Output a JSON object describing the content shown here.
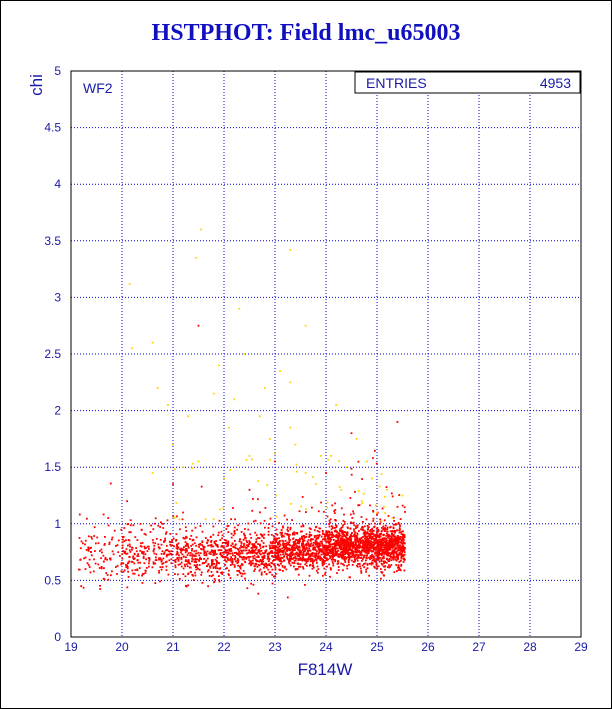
{
  "title": "HSTPHOT: Field lmc_u65003",
  "colors": {
    "title": "#1010c0",
    "axis_text": "#1a1aa8",
    "grid": "#0000cc",
    "points_primary": "#ff0000",
    "points_secondary": "#ffd400",
    "frame": "#000000"
  },
  "panel": {
    "label": "WF2",
    "stats_label": "ENTRIES",
    "stats_value": "4953"
  },
  "chart_data": {
    "type": "scatter",
    "title": "HSTPHOT: Field lmc_u65003",
    "xlabel": "F814W",
    "ylabel": "chi",
    "xlim": [
      19,
      29
    ],
    "ylim": [
      0,
      5
    ],
    "xticks": [
      19,
      20,
      21,
      22,
      23,
      24,
      25,
      26,
      27,
      28,
      29
    ],
    "yticks": [
      "0",
      "0.5",
      "1",
      "1.5",
      "2",
      "2.5",
      "3",
      "3.5",
      "4",
      "4.5",
      "5"
    ],
    "grid": true,
    "entries": 4953,
    "series": [
      {
        "color": "#ff0000",
        "description_points": "dense band of stars, chi ~0.5–1.1 for F814W 19.2–25.5",
        "density_profile": [
          {
            "x": 19.5,
            "chi_center": 0.72,
            "chi_spread": 0.12,
            "weight": 0.4
          },
          {
            "x": 20.5,
            "chi_center": 0.72,
            "chi_spread": 0.12,
            "weight": 0.9
          },
          {
            "x": 21.5,
            "chi_center": 0.73,
            "chi_spread": 0.11,
            "weight": 1.3
          },
          {
            "x": 22.5,
            "chi_center": 0.74,
            "chi_spread": 0.1,
            "weight": 1.8
          },
          {
            "x": 23.5,
            "chi_center": 0.77,
            "chi_spread": 0.09,
            "weight": 2.6
          },
          {
            "x": 24.5,
            "chi_center": 0.8,
            "chi_spread": 0.09,
            "weight": 3.4
          },
          {
            "x": 25.2,
            "chi_center": 0.8,
            "chi_spread": 0.09,
            "weight": 3.0
          }
        ],
        "outliers": [
          [
            21.5,
            2.75
          ],
          [
            24.5,
            1.8
          ],
          [
            23.25,
            0.35
          ],
          [
            19.2,
            0.45
          ],
          [
            25.4,
            1.9
          ],
          [
            23.0,
            1.55
          ],
          [
            22.5,
            1.3
          ],
          [
            21.0,
            1.35
          ],
          [
            24.0,
            1.45
          ],
          [
            20.1,
            1.2
          ]
        ]
      },
      {
        "color": "#ffd400",
        "description_points": "sparse high-chi stars, chi 1.0–3.6",
        "points": [
          [
            20.15,
            3.12
          ],
          [
            20.2,
            2.55
          ],
          [
            20.6,
            2.6
          ],
          [
            21.55,
            3.6
          ],
          [
            21.45,
            3.35
          ],
          [
            22.3,
            2.9
          ],
          [
            23.3,
            3.42
          ],
          [
            23.6,
            2.75
          ],
          [
            20.7,
            2.2
          ],
          [
            21.8,
            2.15
          ],
          [
            21.9,
            2.4
          ],
          [
            22.2,
            2.1
          ],
          [
            22.4,
            2.5
          ],
          [
            22.8,
            2.2
          ],
          [
            23.1,
            2.35
          ],
          [
            23.3,
            2.25
          ],
          [
            22.7,
            1.95
          ],
          [
            22.9,
            1.75
          ],
          [
            23.0,
            1.62
          ],
          [
            23.3,
            1.85
          ],
          [
            23.4,
            1.7
          ],
          [
            23.9,
            1.6
          ],
          [
            24.1,
            1.6
          ],
          [
            24.2,
            2.05
          ],
          [
            24.4,
            1.5
          ],
          [
            24.9,
            1.4
          ],
          [
            25.2,
            1.3
          ],
          [
            25.5,
            1.25
          ],
          [
            24.6,
            1.75
          ],
          [
            22.1,
            1.85
          ],
          [
            21.5,
            1.55
          ],
          [
            21.2,
            1.5
          ],
          [
            20.6,
            1.45
          ],
          [
            21.0,
            1.7
          ],
          [
            23.8,
            1.35
          ],
          [
            24.7,
            1.2
          ],
          [
            25.0,
            1.1
          ],
          [
            24.3,
            1.3
          ],
          [
            23.6,
            1.45
          ],
          [
            22.5,
            1.6
          ],
          [
            20.9,
            2.05
          ],
          [
            21.3,
            1.95
          ],
          [
            22.0,
            1.4
          ],
          [
            24.8,
            1.55
          ],
          [
            25.3,
            1.05
          ]
        ]
      }
    ]
  }
}
